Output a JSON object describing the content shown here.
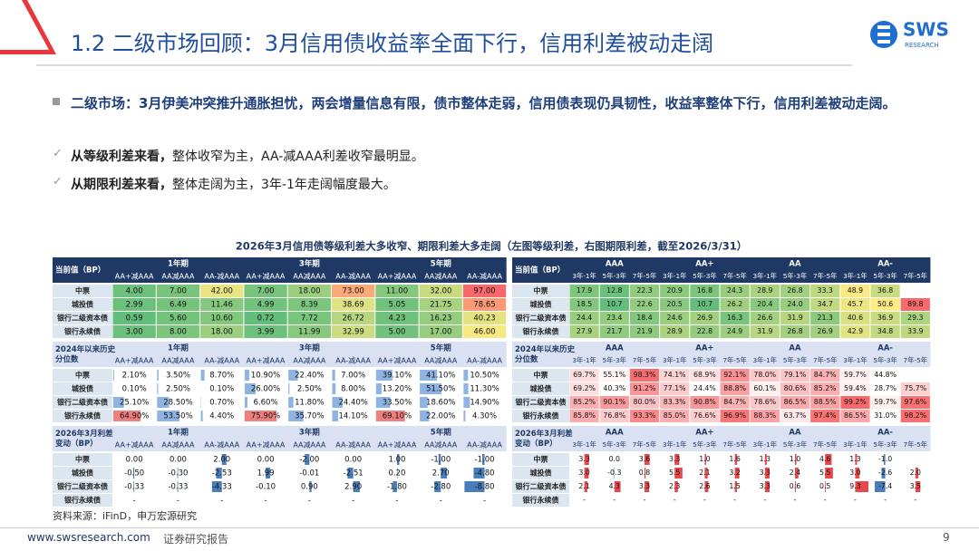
{
  "header": {
    "title": "1.2 二级市场回顾：3月信用债收益率全面下行，信用利差被动走阔",
    "logo": "SWS",
    "logo_sub": "RESEARCH"
  },
  "bullets": [
    {
      "bold": "二级市场：3月伊美冲突推升通胀担忧，两会增量信息有限，债市整体走弱，信用债表现仍具韧性，收益率整体下行，信用利差被动走阔。",
      "text": null
    },
    {
      "bold": "从等级利差来看，",
      "text": "整体收窄为主，AA-减AAA利差收窄最明显。"
    },
    {
      "bold": "从期限利差来看，",
      "text": "整体走阔为主，3年-1年走阔幅度最大。"
    }
  ],
  "table_title": "2026年3月信用债等级利差大多收窄、期限利差大多走阔（左图等级利差，右图期限利差，截至2026/3/31）",
  "left_table": {
    "sections": [
      {
        "label": [
          "当前值（BP）"
        ],
        "groups": [
          "1年期",
          "3年期",
          "5年期"
        ],
        "subheaders": [
          "AA+减AAA",
          "AA减AAA",
          "AA-减AAA",
          "AA+减AAA",
          "AA减AAA",
          "AA-减AAA",
          "AA+减AAA",
          "AA减AAA",
          "AA-减AAA"
        ],
        "rows": [
          {
            "name": "中票",
            "cells": [
              "4.00",
              "7.00",
              "42.00",
              "7.00",
              "18.00",
              "73.00",
              "11.00",
              "32.00",
              "97.00"
            ]
          },
          {
            "name": "城投债",
            "cells": [
              "2.99",
              "6.49",
              "11.46",
              "4.99",
              "8.39",
              "38.69",
              "5.05",
              "21.75",
              "78.65"
            ]
          },
          {
            "name": "银行二级资本债",
            "cells": [
              "0.59",
              "5.60",
              "10.60",
              "0.72",
              "7.72",
              "26.72",
              "4.23",
              "16.23",
              "40.23"
            ]
          },
          {
            "name": "银行永续债",
            "cells": [
              "3.00",
              "8.00",
              "18.00",
              "3.99",
              "11.99",
              "32.99",
              "5.00",
              "17.00",
              "46.00"
            ]
          }
        ]
      },
      {
        "label": [
          "2024年以来历史",
          "分位数"
        ],
        "groups": [
          "1年期",
          "3年期",
          "5年期"
        ],
        "subheaders": [
          "AA+减AAA",
          "AA减AAA",
          "AA-减AAA",
          "AA+减AAA",
          "AA减AAA",
          "AA-减AAA",
          "AA+减AAA",
          "AA减AAA",
          "AA-减AAA"
        ],
        "rows": [
          {
            "name": "中票",
            "cells": [
              "2.10%",
              "3.50%",
              "8.70%",
              "10.90%",
              "22.40%",
              "7.00%",
              "39.10%",
              "41.10%",
              "10.50%"
            ]
          },
          {
            "name": "城投债",
            "cells": [
              "0.10%",
              "2.50%",
              "0.10%",
              "26.00%",
              "2.50%",
              "8.00%",
              "13.20%",
              "51.50%",
              "11.30%"
            ]
          },
          {
            "name": "银行二级资本债",
            "cells": [
              "25.10%",
              "28.50%",
              "0.70%",
              "6.60%",
              "11.80%",
              "24.40%",
              "33.50%",
              "18.60%",
              "14.90%"
            ]
          },
          {
            "name": "银行永续债",
            "cells": [
              "64.90%",
              "53.50%",
              "4.40%",
              "75.90%",
              "35.70%",
              "14.10%",
              "69.10%",
              "22.00%",
              "4.30%"
            ]
          }
        ]
      },
      {
        "label": [
          "2026年3月利差",
          "变动（BP）"
        ],
        "groups": [
          "1年期",
          "3年期",
          "5年期"
        ],
        "subheaders": [
          "AA+减AAA",
          "AA减AAA",
          "AA-减AAA",
          "AA+减AAA",
          "AA减AAA",
          "AA-减AAA",
          "AA+减AAA",
          "AA减AAA",
          "AA-减AAA"
        ],
        "rows": [
          {
            "name": "中票",
            "cells": [
              "0.00",
              "0.00",
              "2.00",
              "0.00",
              "-2.00",
              "0.00",
              "1.00",
              "-1.00",
              "-1.00"
            ]
          },
          {
            "name": "城投债",
            "cells": [
              "-0.50",
              "-0.30",
              "-2.53",
              "1.99",
              "-0.01",
              "-2.51",
              "0.20",
              "2.70",
              "-4.80"
            ]
          },
          {
            "name": "银行二级资本债",
            "cells": [
              "-0.33",
              "-0.33",
              "-4.33",
              "-0.10",
              "0.90",
              "2.90",
              "-1.80",
              "-2.80",
              "-8.80"
            ]
          },
          {
            "name": "银行永续债",
            "cells": [
              "-",
              "-",
              "-",
              "-",
              "-",
              "-",
              "-",
              "-",
              "-"
            ]
          }
        ]
      }
    ]
  },
  "right_table": {
    "sections": [
      {
        "label": [
          "当前值（BP）"
        ],
        "groups": [
          "AAA",
          "AA+",
          "AA",
          "AA-"
        ],
        "subheaders": [
          "3年-1年",
          "5年-3年",
          "7年-5年",
          "3年-1年",
          "5年-3年",
          "7年-5年",
          "3年-1年",
          "5年-3年",
          "7年-5年",
          "3年-1年",
          "5年-3年",
          "7年-5年"
        ],
        "rows": [
          {
            "name": "中票",
            "cells": [
              "17.9",
              "12.8",
              "22.3",
              "20.9",
              "16.8",
              "24.3",
              "28.9",
              "26.8",
              "33.3",
              "48.9",
              "36.8",
              null
            ]
          },
          {
            "name": "城投债",
            "cells": [
              "18.5",
              "10.7",
              "22.6",
              "20.5",
              "10.7",
              "26.2",
              "20.4",
              "24.0",
              "34.7",
              "45.7",
              "50.6",
              "89.8"
            ]
          },
          {
            "name": "银行二级资本债",
            "cells": [
              "24.4",
              "23.4",
              "18.4",
              "24.6",
              "26.9",
              "16.3",
              "26.6",
              "31.9",
              "21.3",
              "40.6",
              "36.9",
              "29.3"
            ]
          },
          {
            "name": "银行永续债",
            "cells": [
              "27.9",
              "21.7",
              "21.9",
              "28.9",
              "22.8",
              "24.9",
              "31.9",
              "26.8",
              "26.9",
              "42.9",
              "34.8",
              "33.9"
            ]
          }
        ]
      },
      {
        "label": [
          "2024年以来历史",
          "分位数"
        ],
        "groups": [
          "AAA",
          "AA+",
          "AA",
          "AA-"
        ],
        "subheaders": [
          "3年-1年",
          "5年-3年",
          "7年-5年",
          "3年-1年",
          "5年-3年",
          "7年-5年",
          "3年-1年",
          "5年-3年",
          "7年-5年",
          "3年-1年",
          "5年-3年",
          "7年-5年"
        ],
        "rows": [
          {
            "name": "中票",
            "cells": [
              "69.7%",
              "55.1%",
              "98.3%",
              "74.1%",
              "68.9%",
              "92.1%",
              "78.0%",
              "79.1%",
              "84.7%",
              "59.7%",
              "44.8%",
              null
            ]
          },
          {
            "name": "城投债",
            "cells": [
              "69.2%",
              "40.3%",
              "91.2%",
              "77.1%",
              "24.4%",
              "88.8%",
              "60.1%",
              "80.6%",
              "85.2%",
              "59.4%",
              "28.7%",
              "75.7%"
            ]
          },
          {
            "name": "银行二级资本债",
            "cells": [
              "85.2%",
              "90.1%",
              "80.0%",
              "83.3%",
              "90.8%",
              "84.7%",
              "78.6%",
              "86.5%",
              "88.5%",
              "99.2%",
              "59.7%",
              "97.6%"
            ]
          },
          {
            "name": "银行永续债",
            "cells": [
              "85.8%",
              "76.8%",
              "93.3%",
              "85.0%",
              "76.6%",
              "96.9%",
              "88.3%",
              "63.7%",
              "97.4%",
              "86.5%",
              "31.0%",
              "98.2%"
            ]
          }
        ]
      },
      {
        "label": [
          "2026年3月利差",
          "变动（BP）"
        ],
        "groups": [
          "AAA",
          "AA+",
          "AA",
          "AA-"
        ],
        "subheaders": [
          "3年-1年",
          "5年-3年",
          "7年-5年",
          "3年-1年",
          "5年-3年",
          "7年-5年",
          "3年-1年",
          "5年-3年",
          "7年-5年",
          "3年-1年",
          "5年-3年",
          "7年-5年"
        ],
        "rows": [
          {
            "name": "中票",
            "cells": [
              "3.3",
              "0.0",
              "3.6",
              "3.3",
              "1.0",
              "1.6",
              "1.3",
              "1.0",
              "4.6",
              "1.3",
              "-1.0",
              null
            ]
          },
          {
            "name": "城投债",
            "cells": [
              "3.0",
              "-0.3",
              "0.8",
              "5.5",
              "2.1",
              "3.2",
              "3.3",
              "2.4",
              "5.5",
              "3.0",
              "-2.6",
              "2.0"
            ]
          },
          {
            "name": "银行二级资本债",
            "cells": [
              "2.1",
              "4.3",
              "3.3",
              "2.3",
              "2.6",
              "1.5",
              "3.3",
              "0.6",
              "0.5",
              "9.3",
              "-7.4",
              "3.5"
            ]
          },
          {
            "name": "银行永续债",
            "cells": [
              "-",
              "-",
              "-",
              "-",
              "-",
              "-",
              "-",
              "-",
              "-",
              "-",
              "-",
              "-"
            ]
          }
        ]
      }
    ]
  },
  "source": "资料来源：iFinD，申万宏源研究",
  "footer": {
    "url": "www.swsresearch.com",
    "label": "证券研究报告",
    "page": "9"
  }
}
